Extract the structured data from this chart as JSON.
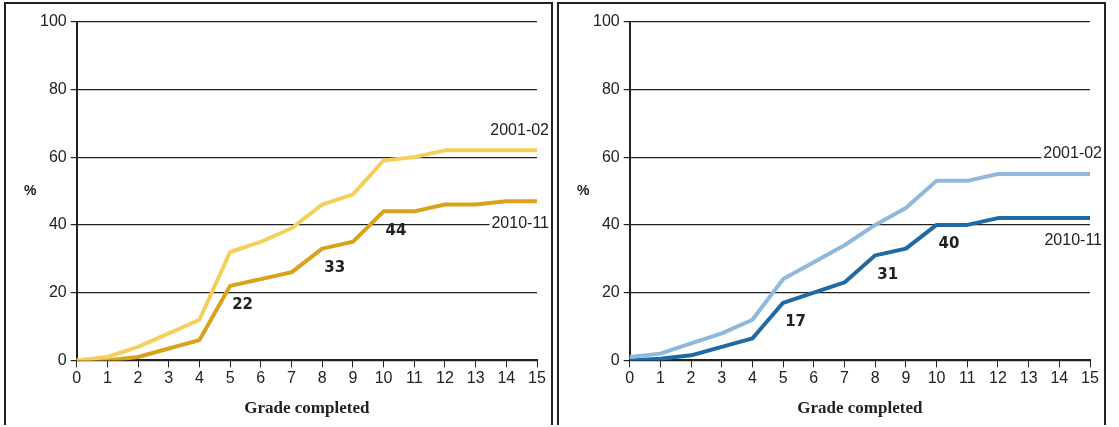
{
  "chart_data": [
    {
      "type": "line",
      "xlabel": "Grade completed",
      "ylabel": "%",
      "x": [
        0,
        1,
        2,
        3,
        4,
        5,
        6,
        7,
        8,
        9,
        10,
        11,
        12,
        13,
        14,
        15
      ],
      "xlim": [
        0,
        15
      ],
      "xticks": [
        0,
        1,
        2,
        3,
        4,
        5,
        6,
        7,
        8,
        9,
        10,
        11,
        12,
        13,
        14,
        15
      ],
      "ylim": [
        0,
        100
      ],
      "yticks": [
        0,
        20,
        40,
        60,
        80,
        100
      ],
      "grid": "y",
      "legend": false,
      "marker": "none",
      "line_style": "solid",
      "series": [
        {
          "name": "2001-02",
          "color": "#f5cf5c",
          "values": [
            0,
            1,
            4,
            8,
            12,
            32,
            35,
            39,
            46,
            49,
            59,
            60,
            62,
            62,
            62,
            62
          ]
        },
        {
          "name": "2010-11",
          "color": "#d9a21b",
          "values": [
            0,
            0,
            1,
            3.5,
            6,
            22,
            24,
            26,
            33,
            35,
            44,
            44,
            46,
            46,
            47,
            47
          ],
          "value_labels": [
            null,
            null,
            null,
            null,
            null,
            "22",
            null,
            null,
            "33",
            null,
            "44",
            null,
            null,
            null,
            null,
            null
          ]
        }
      ]
    },
    {
      "type": "line",
      "xlabel": "Grade completed",
      "ylabel": "%",
      "x": [
        0,
        1,
        2,
        3,
        4,
        5,
        6,
        7,
        8,
        9,
        10,
        11,
        12,
        13,
        14,
        15
      ],
      "xlim": [
        0,
        15
      ],
      "xticks": [
        0,
        1,
        2,
        3,
        4,
        5,
        6,
        7,
        8,
        9,
        10,
        11,
        12,
        13,
        14,
        15
      ],
      "ylim": [
        0,
        100
      ],
      "yticks": [
        0,
        20,
        40,
        60,
        80,
        100
      ],
      "grid": "y",
      "legend": false,
      "marker": "none",
      "line_style": "solid",
      "series": [
        {
          "name": "2001-02",
          "color": "#8fb8dc",
          "values": [
            1,
            2,
            5,
            8,
            12,
            24,
            29,
            34,
            40,
            45,
            53,
            53,
            55,
            55,
            55,
            55
          ]
        },
        {
          "name": "2010-11",
          "color": "#1f6aa5",
          "values": [
            0,
            0.5,
            1.5,
            4,
            6.5,
            17,
            20,
            23,
            31,
            33,
            40,
            40,
            42,
            42,
            42,
            42
          ],
          "value_labels": [
            null,
            null,
            null,
            null,
            null,
            "17",
            null,
            null,
            "31",
            null,
            "40",
            null,
            null,
            null,
            null,
            null
          ]
        }
      ]
    }
  ]
}
